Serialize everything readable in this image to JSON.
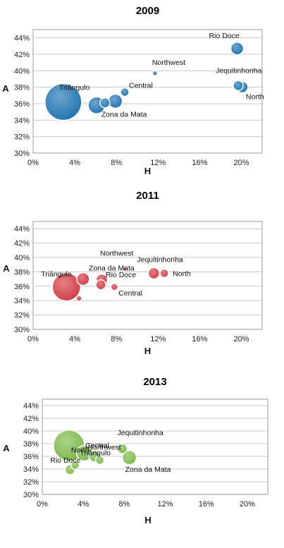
{
  "chart_data": [
    {
      "type": "scatter",
      "subtype": "bubble",
      "title": "2009",
      "xlabel": "H",
      "ylabel": "A",
      "xlim": [
        0,
        22
      ],
      "ylim": [
        30,
        45
      ],
      "xticks": [
        "0%",
        "4%",
        "8%",
        "12%",
        "16%",
        "20%"
      ],
      "yticks": [
        "30%",
        "32%",
        "34%",
        "36%",
        "38%",
        "40%",
        "42%",
        "44%"
      ],
      "color": "#1e73b1",
      "grid": "horizontal",
      "points": [
        {
          "label": "Triângulo",
          "x": 2.9,
          "y": 36.2,
          "size": 26
        },
        {
          "label": "",
          "x": 6.1,
          "y": 35.8,
          "size": 12
        },
        {
          "label": "",
          "x": 6.9,
          "y": 36.1,
          "size": 7
        },
        {
          "label": "Zona da Mata",
          "x": 7.9,
          "y": 36.3,
          "size": 10
        },
        {
          "label": "Central",
          "x": 8.8,
          "y": 37.4,
          "size": 6
        },
        {
          "label": "Northwest",
          "x": 11.7,
          "y": 39.7,
          "size": 3.5
        },
        {
          "label": "Rio Doce",
          "x": 19.6,
          "y": 42.7,
          "size": 9
        },
        {
          "label": "Jequitinhonha",
          "x": 19.7,
          "y": 38.2,
          "size": 7
        },
        {
          "label": "North",
          "x": 20.1,
          "y": 38.0,
          "size": 8
        }
      ]
    },
    {
      "type": "scatter",
      "subtype": "bubble",
      "title": "2011",
      "xlabel": "H",
      "ylabel": "A",
      "xlim": [
        0,
        22
      ],
      "ylim": [
        30,
        45
      ],
      "xticks": [
        "0%",
        "4%",
        "8%",
        "12%",
        "16%",
        "20%"
      ],
      "yticks": [
        "30%",
        "32%",
        "34%",
        "36%",
        "38%",
        "40%",
        "42%",
        "44%"
      ],
      "color": "#d23a45",
      "grid": "horizontal",
      "points": [
        {
          "label": "Triângulo",
          "x": 3.2,
          "y": 35.9,
          "size": 20
        },
        {
          "label": "",
          "x": 4.4,
          "y": 34.3,
          "size": 4
        },
        {
          "label": "Zona da Mata",
          "x": 4.8,
          "y": 37.0,
          "size": 9
        },
        {
          "label": "Rio Doce",
          "x": 6.5,
          "y": 36.2,
          "size": 7
        },
        {
          "label": "",
          "x": 6.6,
          "y": 36.9,
          "size": 8
        },
        {
          "label": "Central",
          "x": 7.8,
          "y": 35.9,
          "size": 5
        },
        {
          "label": "Northwest",
          "x": 8.8,
          "y": 38.4,
          "size": 3
        },
        {
          "label": "Jequitinhonha",
          "x": 11.6,
          "y": 37.8,
          "size": 8
        },
        {
          "label": "North",
          "x": 12.6,
          "y": 37.8,
          "size": 6
        }
      ]
    },
    {
      "type": "scatter",
      "subtype": "bubble",
      "title": "2013",
      "xlabel": "H",
      "ylabel": "A",
      "xlim": [
        0,
        22
      ],
      "ylim": [
        30,
        45
      ],
      "xticks": [
        "0%",
        "4%",
        "8%",
        "12%",
        "16%",
        "20%"
      ],
      "yticks": [
        "30%",
        "32%",
        "34%",
        "36%",
        "38%",
        "40%",
        "42%",
        "44%"
      ],
      "color": "#7cba4b",
      "grid": "horizontal",
      "points": [
        {
          "label": "North",
          "x": 2.6,
          "y": 37.7,
          "size": 22
        },
        {
          "label": "Rio Doce",
          "x": 2.7,
          "y": 33.9,
          "size": 7
        },
        {
          "label": "",
          "x": 3.2,
          "y": 34.6,
          "size": 6
        },
        {
          "label": "Triângulo",
          "x": 4.1,
          "y": 36.5,
          "size": 11
        },
        {
          "label": "Central",
          "x": 5.1,
          "y": 36.0,
          "size": 8
        },
        {
          "label": "Northwest",
          "x": 5.6,
          "y": 35.4,
          "size": 6
        },
        {
          "label": "Jequitinhonha",
          "x": 7.8,
          "y": 37.2,
          "size": 7
        },
        {
          "label": "Zona da Mata",
          "x": 8.5,
          "y": 35.8,
          "size": 10
        }
      ]
    }
  ]
}
